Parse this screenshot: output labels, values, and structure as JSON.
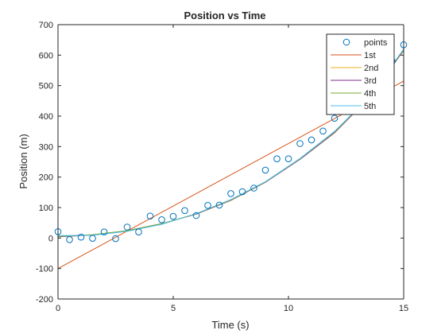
{
  "chart_data": {
    "type": "line",
    "title": "Position vs Time",
    "xlabel": "Time (s)",
    "ylabel": "Position (m)",
    "xlim": [
      0,
      15
    ],
    "ylim": [
      -200,
      700
    ],
    "x_ticks": [
      0,
      5,
      10,
      15
    ],
    "y_ticks": [
      -200,
      -100,
      0,
      100,
      200,
      300,
      400,
      500,
      600,
      700
    ],
    "grid": false,
    "legend_placement": "top-right",
    "points": {
      "name": "points",
      "marker": "circle",
      "color": "#0072BD",
      "x": [
        0,
        0.5,
        1,
        1.5,
        2,
        2.5,
        3,
        3.5,
        4,
        4.5,
        5,
        5.5,
        6,
        6.5,
        7,
        7.5,
        8,
        8.5,
        9,
        9.5,
        10,
        10.5,
        11,
        11.5,
        12,
        12.5,
        13,
        13.5,
        14,
        14.5,
        15
      ],
      "y": [
        21,
        -5,
        3,
        -1,
        20,
        -2,
        36,
        20,
        72,
        60,
        71,
        90,
        74,
        107,
        108,
        146,
        152,
        164,
        223,
        260,
        260,
        310,
        322,
        351,
        393,
        420,
        450,
        490,
        530,
        580,
        634
      ]
    },
    "series": [
      {
        "name": "1st",
        "color": "#D95319",
        "x": [
          0,
          15
        ],
        "y": [
          -100,
          515
        ]
      },
      {
        "name": "2nd",
        "color": "#EDB120",
        "x": [
          0,
          1.5,
          3,
          4.5,
          6,
          7.5,
          9,
          10.5,
          12,
          13.5,
          15
        ],
        "y": [
          4,
          10,
          24,
          47,
          78,
          123,
          183,
          258,
          345,
          460,
          615
        ]
      },
      {
        "name": "3rd",
        "color": "#7E2F8E",
        "x": [
          0,
          1.5,
          3,
          4.5,
          6,
          7.5,
          9,
          10.5,
          12,
          13.5,
          15
        ],
        "y": [
          4,
          10,
          24,
          47,
          79,
          124,
          183,
          258,
          346,
          460,
          616
        ]
      },
      {
        "name": "4th",
        "color": "#77AC30",
        "x": [
          0,
          1.5,
          3,
          4.5,
          6,
          7.5,
          9,
          10.5,
          12,
          13.5,
          15
        ],
        "y": [
          5,
          11,
          24,
          47,
          80,
          125,
          184,
          260,
          348,
          461,
          618
        ]
      },
      {
        "name": "5th",
        "color": "#4DBEEE",
        "x": [
          0,
          1.5,
          3,
          4.5,
          6,
          7.5,
          9,
          10.5,
          12,
          13.5,
          15
        ],
        "y": [
          8,
          9,
          22,
          45,
          80,
          126,
          185,
          261,
          350,
          462,
          620
        ]
      }
    ]
  }
}
